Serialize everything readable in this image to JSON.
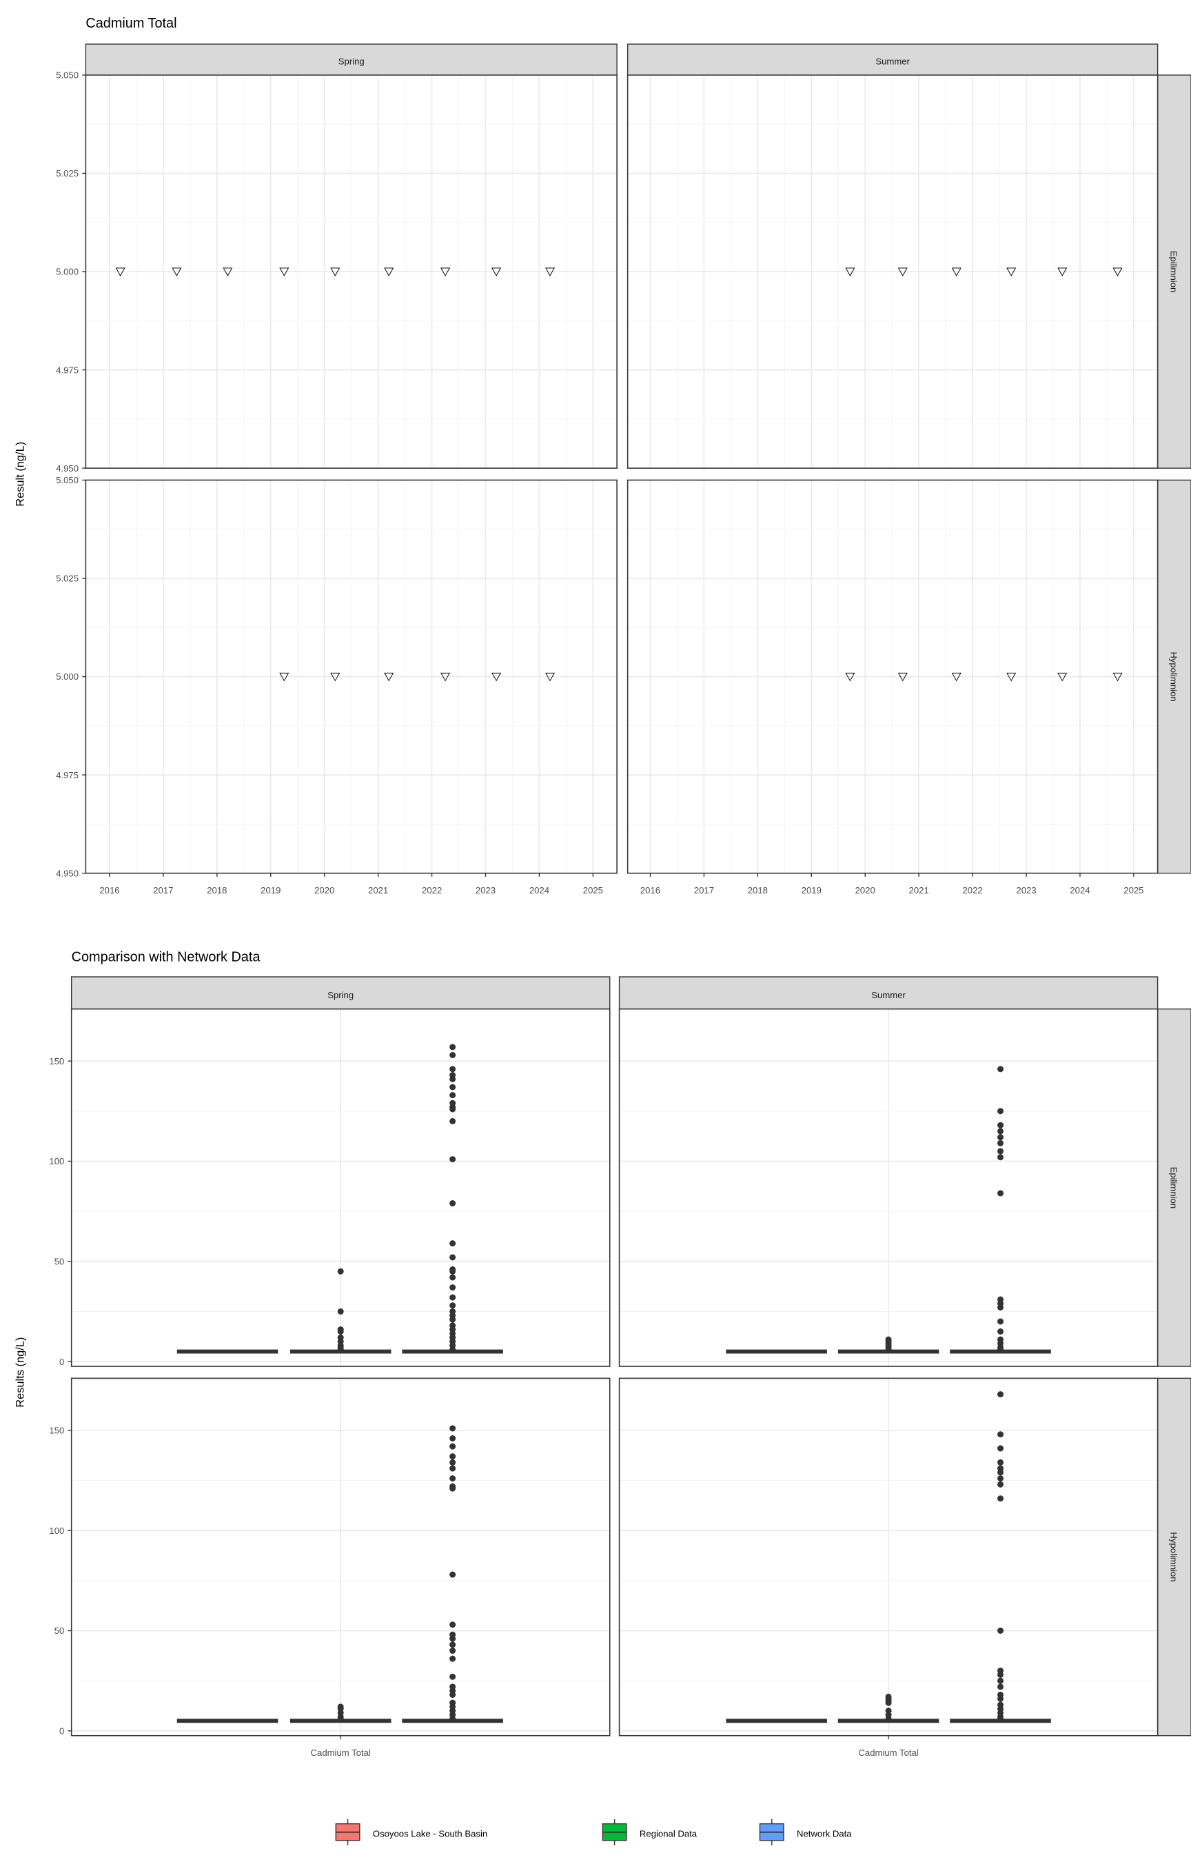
{
  "chart_data": [
    {
      "type": "scatter",
      "title": "Cadmium Total",
      "ylabel": "Result (ng/L)",
      "xlabel": "",
      "ylim": [
        4.95,
        5.05
      ],
      "xlim": [
        2015.8,
        2025.3
      ],
      "yticks": [
        "4.950",
        "4.975",
        "5.000",
        "5.025",
        "5.050"
      ],
      "xticks": [
        "2016",
        "2017",
        "2018",
        "2019",
        "2020",
        "2021",
        "2022",
        "2023",
        "2024",
        "2025"
      ],
      "columns": [
        "Spring",
        "Summer"
      ],
      "rows": [
        "Epilimnion",
        "Hypolimnion"
      ],
      "marker": "open-down-triangle",
      "grid": true,
      "panels": [
        {
          "column": "Spring",
          "row": "Epilimnion",
          "points": [
            [
              2016.2,
              5.0
            ],
            [
              2017.25,
              5.0
            ],
            [
              2018.2,
              5.0
            ],
            [
              2019.25,
              5.0
            ],
            [
              2020.2,
              5.0
            ],
            [
              2021.2,
              5.0
            ],
            [
              2022.25,
              5.0
            ],
            [
              2023.2,
              5.0
            ],
            [
              2024.2,
              5.0
            ]
          ]
        },
        {
          "column": "Summer",
          "row": "Epilimnion",
          "points": [
            [
              2019.72,
              5.0
            ],
            [
              2020.7,
              5.0
            ],
            [
              2021.7,
              5.0
            ],
            [
              2022.72,
              5.0
            ],
            [
              2023.67,
              5.0
            ],
            [
              2024.7,
              5.0
            ]
          ]
        },
        {
          "column": "Spring",
          "row": "Hypolimnion",
          "points": [
            [
              2019.25,
              5.0
            ],
            [
              2020.2,
              5.0
            ],
            [
              2021.2,
              5.0
            ],
            [
              2022.25,
              5.0
            ],
            [
              2023.2,
              5.0
            ],
            [
              2024.2,
              5.0
            ]
          ]
        },
        {
          "column": "Summer",
          "row": "Hypolimnion",
          "points": [
            [
              2019.72,
              5.0
            ],
            [
              2020.7,
              5.0
            ],
            [
              2021.7,
              5.0
            ],
            [
              2022.72,
              5.0
            ],
            [
              2023.67,
              5.0
            ],
            [
              2024.7,
              5.0
            ]
          ]
        }
      ]
    },
    {
      "type": "box",
      "title": "Comparison with Network Data",
      "ylabel": "Results (ng/L)",
      "xlabel": "",
      "categories": [
        "Cadmium Total"
      ],
      "yticks": [
        "0",
        "50",
        "100",
        "150"
      ],
      "ylim": [
        -2.4,
        176
      ],
      "columns": [
        "Spring",
        "Summer"
      ],
      "rows": [
        "Epilimnion",
        "Hypolimnion"
      ],
      "grid": true,
      "legend": {
        "position": "bottom",
        "entries": [
          {
            "name": "Osoyoos Lake - South Basin",
            "color": "#F8766D"
          },
          {
            "name": "Regional Data",
            "color": "#00BA38"
          },
          {
            "name": "Network Data",
            "color": "#619CFF"
          }
        ]
      },
      "panels": [
        {
          "column": "Spring",
          "row": "Epilimnion",
          "groups": [
            {
              "name": "Osoyoos Lake - South Basin",
              "median": 5,
              "outliers": []
            },
            {
              "name": "Regional Data",
              "median": 5,
              "outliers": [
                45,
                25,
                16,
                15,
                12,
                10,
                8,
                7,
                6
              ]
            },
            {
              "name": "Network Data",
              "median": 5,
              "outliers": [
                157,
                153,
                146,
                143,
                141,
                137,
                133,
                129,
                127,
                126,
                120,
                101,
                79,
                59,
                52,
                46,
                45,
                42,
                37,
                32,
                28,
                25,
                23,
                21,
                18,
                16,
                14,
                12,
                10,
                8,
                6
              ]
            }
          ]
        },
        {
          "column": "Summer",
          "row": "Epilimnion",
          "groups": [
            {
              "name": "Osoyoos Lake - South Basin",
              "median": 5,
              "outliers": []
            },
            {
              "name": "Regional Data",
              "median": 5,
              "outliers": [
                11,
                10,
                9,
                8,
                7,
                6
              ]
            },
            {
              "name": "Network Data",
              "median": 5,
              "outliers": [
                146,
                125,
                118,
                115,
                112,
                109,
                105,
                102,
                84,
                31,
                29,
                27,
                20,
                15,
                11,
                9,
                7,
                6
              ]
            }
          ]
        },
        {
          "column": "Spring",
          "row": "Hypolimnion",
          "groups": [
            {
              "name": "Osoyoos Lake - South Basin",
              "median": 5,
              "outliers": []
            },
            {
              "name": "Regional Data",
              "median": 5,
              "outliers": [
                12,
                11,
                9,
                7,
                6
              ]
            },
            {
              "name": "Network Data",
              "median": 5,
              "outliers": [
                151,
                146,
                142,
                137,
                134,
                131,
                126,
                122,
                121,
                78,
                53,
                48,
                46,
                43,
                40,
                36,
                27,
                22,
                20,
                18,
                14,
                12,
                10,
                8,
                6
              ]
            }
          ]
        },
        {
          "column": "Summer",
          "row": "Hypolimnion",
          "groups": [
            {
              "name": "Osoyoos Lake - South Basin",
              "median": 5,
              "outliers": []
            },
            {
              "name": "Regional Data",
              "median": 5,
              "outliers": [
                17,
                16,
                15,
                14,
                10,
                8,
                6
              ]
            },
            {
              "name": "Network Data",
              "median": 5,
              "outliers": [
                168,
                148,
                141,
                134,
                131,
                129,
                126,
                123,
                116,
                50,
                30,
                28,
                25,
                22,
                18,
                16,
                13,
                11,
                9,
                7,
                6
              ]
            }
          ]
        }
      ]
    }
  ]
}
